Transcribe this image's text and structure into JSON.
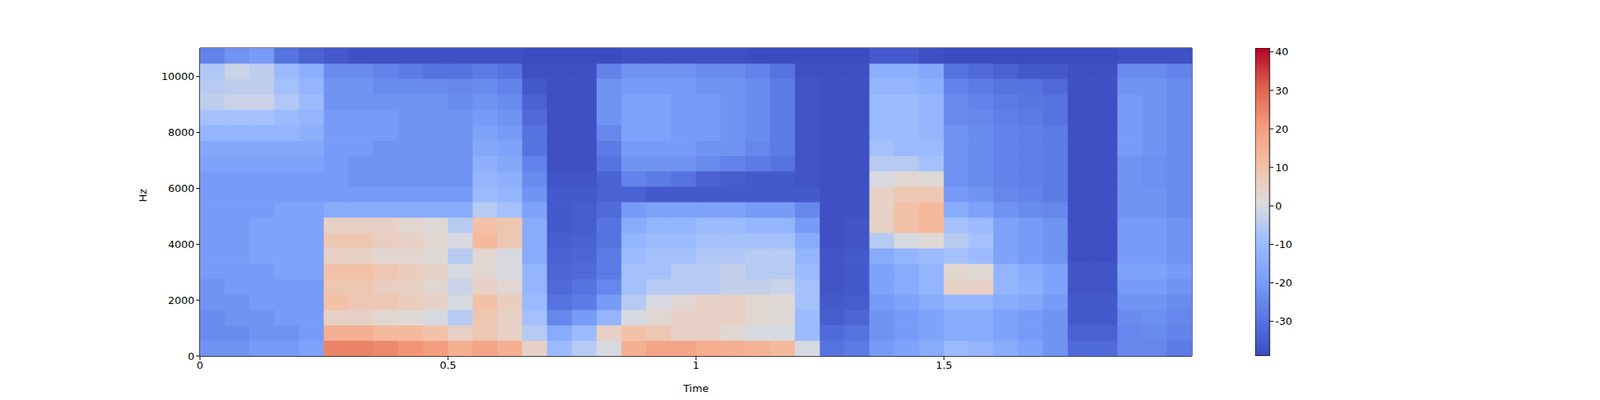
{
  "chart_data": {
    "type": "heatmap",
    "x_label": "Time",
    "y_label": "Hz",
    "color": "coolwarm",
    "xlim": [
      0,
      2.0
    ],
    "xticks": [
      0,
      0.5,
      1,
      1.5
    ],
    "ylim": [
      0,
      11025
    ],
    "yticks": [
      0,
      2000,
      4000,
      6000,
      8000,
      10000
    ],
    "colorbar_range": [
      -39,
      41
    ],
    "colorbar_ticks": [
      -30,
      -20,
      -10,
      0,
      10,
      20,
      30,
      40
    ],
    "x": [
      0.025,
      0.075,
      0.125,
      0.175,
      0.225,
      0.275,
      0.325,
      0.375,
      0.425,
      0.475,
      0.525,
      0.575,
      0.625,
      0.675,
      0.725,
      0.775,
      0.825,
      0.875,
      0.925,
      0.975,
      1.025,
      1.075,
      1.125,
      1.175,
      1.225,
      1.275,
      1.325,
      1.375,
      1.425,
      1.475,
      1.525,
      1.575,
      1.625,
      1.675,
      1.725,
      1.775,
      1.825,
      1.875,
      1.925,
      1.975
    ],
    "y": [
      276,
      827,
      1378,
      1929,
      2481,
      3032,
      3583,
      4134,
      4686,
      5237,
      5788,
      6339,
      6891,
      7442,
      7993,
      8544,
      9096,
      9647,
      10198,
      10749
    ],
    "values": [
      [
        -22,
        -22,
        -20,
        -20,
        -18,
        25,
        25,
        24,
        22,
        20,
        15,
        18,
        15,
        5,
        -10,
        -5,
        0,
        15,
        18,
        18,
        16,
        15,
        14,
        12,
        0,
        -30,
        -28,
        -20,
        -18,
        -15,
        -10,
        -12,
        -15,
        -18,
        -22,
        -32,
        -32,
        -25,
        -25,
        -28
      ],
      [
        -24,
        -24,
        -22,
        -22,
        -20,
        15,
        15,
        12,
        12,
        10,
        5,
        8,
        5,
        -5,
        -15,
        -10,
        5,
        10,
        8,
        5,
        5,
        3,
        0,
        0,
        -10,
        -32,
        -30,
        -22,
        -20,
        -18,
        -15,
        -15,
        -18,
        -20,
        -22,
        -34,
        -34,
        -25,
        -24,
        -26
      ],
      [
        -24,
        -22,
        -22,
        -20,
        -20,
        5,
        5,
        3,
        2,
        0,
        -5,
        8,
        5,
        -8,
        -25,
        -20,
        -12,
        0,
        3,
        5,
        5,
        5,
        3,
        2,
        -10,
        -35,
        -33,
        -22,
        -20,
        -18,
        -15,
        -15,
        -18,
        -20,
        -22,
        -36,
        -36,
        -24,
        -23,
        -25
      ],
      [
        -22,
        -22,
        -20,
        -20,
        -20,
        10,
        8,
        8,
        6,
        5,
        0,
        10,
        6,
        -10,
        -30,
        -28,
        -20,
        -5,
        0,
        3,
        5,
        5,
        3,
        2,
        -8,
        -36,
        -35,
        -20,
        -18,
        -15,
        -12,
        -12,
        -15,
        -16,
        -20,
        -36,
        -36,
        -22,
        -22,
        -24
      ],
      [
        -22,
        -20,
        -20,
        -20,
        -20,
        8,
        8,
        6,
        5,
        3,
        -2,
        5,
        3,
        -12,
        -32,
        -30,
        -25,
        -8,
        -5,
        -5,
        -5,
        -3,
        -3,
        -2,
        -8,
        -37,
        -36,
        -18,
        -15,
        -12,
        5,
        5,
        -12,
        -14,
        -18,
        -37,
        -37,
        -20,
        -20,
        -22
      ],
      [
        -20,
        -20,
        -20,
        -18,
        -18,
        10,
        10,
        8,
        6,
        5,
        0,
        3,
        0,
        -12,
        -33,
        -32,
        -28,
        -8,
        -8,
        -5,
        -5,
        -3,
        -5,
        -5,
        -10,
        -37,
        -36,
        -18,
        -15,
        -12,
        3,
        2,
        -12,
        -15,
        -18,
        -37,
        -37,
        -18,
        -18,
        -20
      ],
      [
        -20,
        -20,
        -18,
        -18,
        -18,
        5,
        5,
        3,
        3,
        2,
        -5,
        3,
        0,
        -15,
        -34,
        -33,
        -28,
        -10,
        -8,
        -8,
        -6,
        -6,
        -5,
        -5,
        -12,
        -37,
        -36,
        -15,
        -12,
        -10,
        -8,
        -10,
        -18,
        -20,
        -22,
        -38,
        -38,
        -20,
        -20,
        -22
      ],
      [
        -20,
        -20,
        -18,
        -18,
        -18,
        8,
        8,
        6,
        5,
        3,
        0,
        12,
        8,
        -15,
        -35,
        -34,
        -30,
        -12,
        -10,
        -10,
        -8,
        -8,
        -8,
        -8,
        -15,
        -38,
        -37,
        -5,
        0,
        2,
        -5,
        -8,
        -18,
        -20,
        -22,
        -38,
        -38,
        -20,
        -20,
        -22
      ],
      [
        -20,
        -20,
        -18,
        -18,
        -18,
        5,
        5,
        5,
        3,
        2,
        -5,
        10,
        8,
        -15,
        -36,
        -35,
        -30,
        -15,
        -12,
        -12,
        -10,
        -10,
        -12,
        -12,
        -20,
        -38,
        -37,
        5,
        10,
        12,
        -8,
        -10,
        -18,
        -20,
        -22,
        -38,
        -38,
        -20,
        -20,
        -22
      ],
      [
        -20,
        -20,
        -20,
        -18,
        -18,
        -15,
        -15,
        -15,
        -15,
        -15,
        -15,
        -5,
        -8,
        -18,
        -36,
        -35,
        -32,
        -20,
        -18,
        -18,
        -18,
        -18,
        -20,
        -20,
        -25,
        -38,
        -38,
        5,
        10,
        12,
        -15,
        -18,
        -22,
        -24,
        -25,
        -38,
        -38,
        -22,
        -22,
        -24
      ],
      [
        -20,
        -20,
        -20,
        -20,
        -20,
        -20,
        -20,
        -20,
        -20,
        -20,
        -20,
        -10,
        -12,
        -22,
        -36,
        -36,
        -34,
        -34,
        -36,
        -36,
        -36,
        -36,
        -36,
        -36,
        -36,
        -38,
        -38,
        5,
        8,
        8,
        -20,
        -22,
        -25,
        -26,
        -28,
        -38,
        -38,
        -22,
        -22,
        -24
      ],
      [
        -20,
        -20,
        -20,
        -20,
        -20,
        -20,
        -22,
        -22,
        -22,
        -22,
        -22,
        -12,
        -14,
        -24,
        -37,
        -37,
        -34,
        -26,
        -28,
        -30,
        -34,
        -35,
        -36,
        -36,
        -37,
        -38,
        -38,
        0,
        3,
        2,
        -22,
        -24,
        -26,
        -27,
        -28,
        -38,
        -38,
        -22,
        -23,
        -24
      ],
      [
        -18,
        -18,
        -18,
        -18,
        -18,
        -20,
        -22,
        -22,
        -22,
        -22,
        -22,
        -14,
        -16,
        -26,
        -38,
        -38,
        -30,
        -22,
        -22,
        -22,
        -24,
        -26,
        -28,
        -30,
        -37,
        -38,
        -38,
        -5,
        -5,
        -8,
        -22,
        -24,
        -26,
        -27,
        -28,
        -38,
        -38,
        -22,
        -23,
        -24
      ],
      [
        -16,
        -16,
        -16,
        -16,
        -16,
        -20,
        -20,
        -22,
        -22,
        -22,
        -22,
        -16,
        -18,
        -30,
        -38,
        -38,
        -28,
        -20,
        -20,
        -20,
        -22,
        -22,
        -25,
        -28,
        -37,
        -38,
        -38,
        -8,
        -10,
        -10,
        -22,
        -24,
        -26,
        -27,
        -28,
        -38,
        -38,
        -20,
        -22,
        -24
      ],
      [
        -12,
        -12,
        -12,
        -12,
        -14,
        -20,
        -20,
        -20,
        -22,
        -22,
        -22,
        -18,
        -20,
        -30,
        -38,
        -38,
        -25,
        -18,
        -18,
        -20,
        -20,
        -22,
        -24,
        -28,
        -37,
        -38,
        -38,
        -10,
        -10,
        -12,
        -22,
        -24,
        -26,
        -27,
        -28,
        -38,
        -38,
        -20,
        -22,
        -24
      ],
      [
        -8,
        -8,
        -8,
        -10,
        -12,
        -20,
        -20,
        -20,
        -22,
        -22,
        -22,
        -20,
        -22,
        -32,
        -38,
        -38,
        -22,
        -18,
        -18,
        -20,
        -20,
        -22,
        -24,
        -28,
        -37,
        -38,
        -38,
        -10,
        -10,
        -12,
        -24,
        -25,
        -27,
        -28,
        -30,
        -38,
        -38,
        -20,
        -22,
        -24
      ],
      [
        -4,
        -2,
        -2,
        -6,
        -10,
        -22,
        -22,
        -22,
        -22,
        -22,
        -24,
        -22,
        -24,
        -34,
        -38,
        -38,
        -22,
        -18,
        -18,
        -20,
        -20,
        -22,
        -24,
        -28,
        -37,
        -38,
        -38,
        -10,
        -10,
        -12,
        -24,
        -26,
        -28,
        -29,
        -30,
        -38,
        -38,
        -20,
        -22,
        -24
      ],
      [
        -5,
        -4,
        -4,
        -8,
        -12,
        -22,
        -22,
        -24,
        -24,
        -24,
        -25,
        -24,
        -26,
        -36,
        -38,
        -38,
        -22,
        -20,
        -20,
        -20,
        -22,
        -22,
        -24,
        -28,
        -37,
        -38,
        -38,
        -12,
        -12,
        -14,
        -26,
        -28,
        -30,
        -30,
        -32,
        -38,
        -38,
        -22,
        -22,
        -24
      ],
      [
        -6,
        -2,
        -4,
        -10,
        -14,
        -24,
        -24,
        -26,
        -28,
        -30,
        -30,
        -28,
        -30,
        -38,
        -38,
        -38,
        -26,
        -22,
        -22,
        -22,
        -24,
        -24,
        -26,
        -30,
        -38,
        -38,
        -38,
        -14,
        -14,
        -16,
        -30,
        -32,
        -34,
        -36,
        -36,
        -38,
        -38,
        -24,
        -24,
        -26
      ],
      [
        -26,
        -22,
        -20,
        -30,
        -34,
        -36,
        -38,
        -38,
        -38,
        -38,
        -38,
        -38,
        -38,
        -39,
        -39,
        -39,
        -39,
        -38,
        -38,
        -38,
        -38,
        -38,
        -39,
        -39,
        -39,
        -39,
        -39,
        -36,
        -36,
        -38,
        -39,
        -39,
        -39,
        -39,
        -39,
        -39,
        -39,
        -38,
        -38,
        -38
      ]
    ]
  }
}
